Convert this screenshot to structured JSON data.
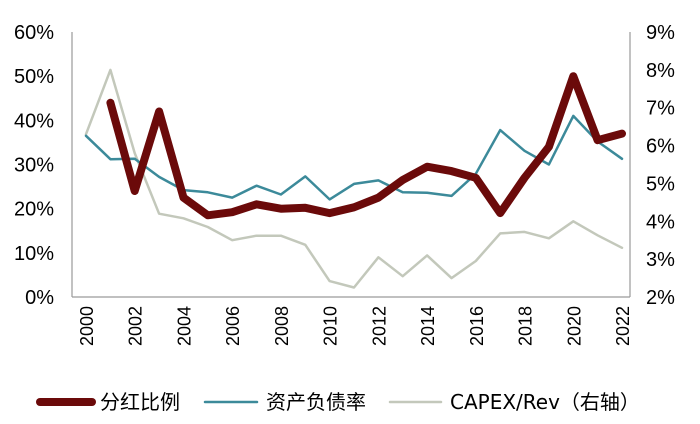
{
  "chart_data": {
    "type": "line",
    "x": [
      "2000",
      "2001",
      "2002",
      "2003",
      "2004",
      "2005",
      "2006",
      "2007",
      "2008",
      "2009",
      "2010",
      "2011",
      "2012",
      "2013",
      "2014",
      "2015",
      "2016",
      "2017",
      "2018",
      "2019",
      "2020",
      "2021",
      "2022"
    ],
    "left_axis": {
      "ylim": [
        0,
        60
      ],
      "ticks": [
        "0%",
        "10%",
        "20%",
        "30%",
        "40%",
        "50%",
        "60%"
      ]
    },
    "right_axis": {
      "ylim": [
        2,
        9
      ],
      "ticks": [
        "2%",
        "3%",
        "4%",
        "5%",
        "6%",
        "7%",
        "8%",
        "9%"
      ]
    },
    "x_tick_labels": [
      "2000",
      "2002",
      "2004",
      "2006",
      "2008",
      "2010",
      "2012",
      "2014",
      "2016",
      "2018",
      "2020",
      "2022"
    ],
    "series": [
      {
        "name": "分红比例",
        "axis": "left",
        "color": "#6b0a0a",
        "values": [
          null,
          44,
          24,
          42,
          22.5,
          18.5,
          19.2,
          21,
          20,
          20.2,
          19,
          20.3,
          22.5,
          26.5,
          29.5,
          28.5,
          27,
          19,
          27,
          34,
          50,
          35.5,
          37
        ]
      },
      {
        "name": "资产负债率",
        "axis": "left",
        "color": "#3c8a9a",
        "values": [
          36.5,
          31.2,
          31.3,
          27.2,
          24.2,
          23.7,
          22.5,
          25.2,
          23.2,
          27.3,
          22.1,
          25.6,
          26.4,
          23.7,
          23.6,
          22.9,
          27.9,
          37.8,
          33.1,
          30,
          41,
          35.2,
          31.3
        ]
      },
      {
        "name": "CAPEX/Rev（右轴）",
        "axis": "right",
        "color": "#c3c8bb",
        "values": [
          6.3,
          8,
          5.8,
          4.2,
          4.08,
          3.85,
          3.5,
          3.62,
          3.62,
          3.38,
          2.42,
          2.25,
          3.05,
          2.55,
          3.1,
          2.5,
          2.95,
          3.68,
          3.72,
          3.55,
          4,
          3.63,
          3.3
        ]
      }
    ],
    "legend": {
      "placement": "bottom"
    },
    "grid": false
  }
}
